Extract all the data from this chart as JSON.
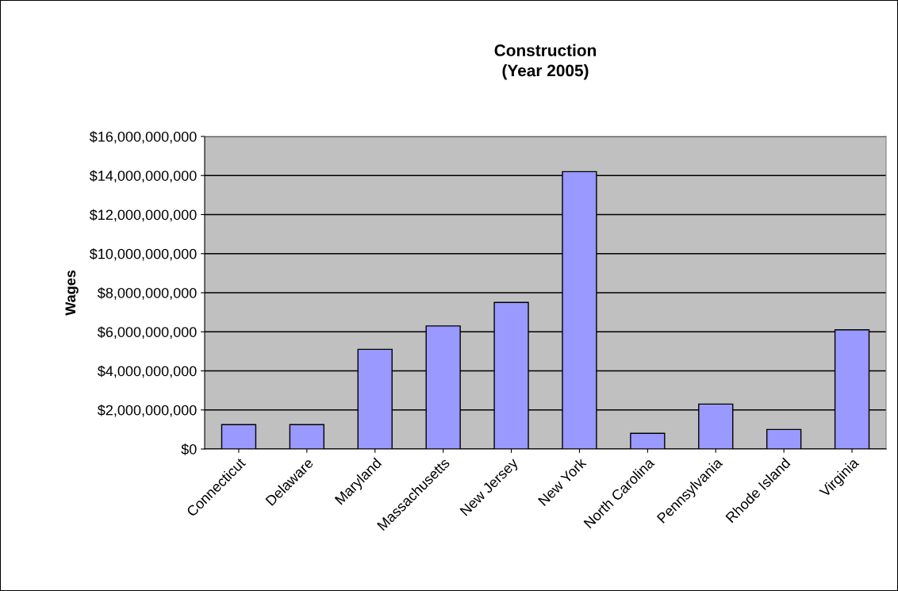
{
  "chart_data": {
    "type": "bar",
    "title": "Construction\n(Year 2005)",
    "ylabel": "Wages",
    "categories": [
      "Connecticut",
      "Delaware",
      "Maryland",
      "Massachusetts",
      "New Jersey",
      "New York",
      "North Carolina",
      "Pennsylvania",
      "Rhode Island",
      "Virginia"
    ],
    "values": [
      1250000000,
      1250000000,
      5100000000,
      6300000000,
      7500000000,
      14200000000,
      800000000,
      2300000000,
      1000000000,
      6100000000
    ],
    "color": "#9999ff",
    "ylim": [
      0,
      16000000000
    ],
    "yticks": [
      {
        "value": 0,
        "label": "$0"
      },
      {
        "value": 2000000000,
        "label": "$2,000,000,000"
      },
      {
        "value": 4000000000,
        "label": "$4,000,000,000"
      },
      {
        "value": 6000000000,
        "label": "$6,000,000,000"
      },
      {
        "value": 8000000000,
        "label": "$8,000,000,000"
      },
      {
        "value": 10000000000,
        "label": "$10,000,000,000"
      },
      {
        "value": 12000000000,
        "label": "$12,000,000,000"
      },
      {
        "value": 14000000000,
        "label": "$14,000,000,000"
      },
      {
        "value": 16000000000,
        "label": "$16,000,000,000"
      }
    ],
    "grid": "y",
    "legend": false
  }
}
